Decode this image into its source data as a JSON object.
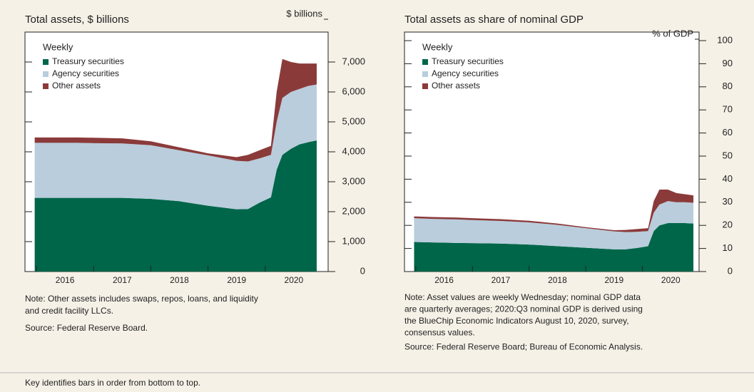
{
  "chart_data": [
    {
      "type": "stacked_area",
      "title": "Total assets, $ billions",
      "y_axis_label": "$ billions",
      "legend_title": "Weekly",
      "xlim": [
        2015.8,
        2021.1
      ],
      "xticks": [
        {
          "value": 2016,
          "label": "2016"
        },
        {
          "value": 2017,
          "label": "2017"
        },
        {
          "value": 2018,
          "label": "2018"
        },
        {
          "value": 2019,
          "label": "2019"
        },
        {
          "value": 2020,
          "label": "2020"
        }
      ],
      "ylim": [
        0,
        8000
      ],
      "yticks": [
        0,
        {
          "value": 1000,
          "label": "1,000"
        },
        {
          "value": 2000,
          "label": "2,000"
        },
        {
          "value": 3000,
          "label": "3,000"
        },
        {
          "value": 4000,
          "label": "4,000"
        },
        {
          "value": 5000,
          "label": "5,000"
        },
        {
          "value": 6000,
          "label": "6,000"
        },
        {
          "value": 7000,
          "label": "7,000"
        }
      ],
      "x": [
        2015.97,
        2016.3,
        2016.7,
        2017,
        2017.5,
        2018,
        2018.5,
        2019,
        2019.5,
        2019.7,
        2019.9,
        2020.1,
        2020.2,
        2020.3,
        2020.45,
        2020.6,
        2020.75,
        2020.9
      ],
      "series": [
        {
          "name": "Treasury securities",
          "color": "#00664a",
          "values": [
            2460,
            2460,
            2460,
            2460,
            2460,
            2430,
            2350,
            2200,
            2080,
            2090,
            2300,
            2480,
            3400,
            3900,
            4100,
            4250,
            4320,
            4380
          ]
        },
        {
          "name": "Agency securities",
          "color": "#b9cddc",
          "values": [
            1840,
            1840,
            1840,
            1830,
            1820,
            1790,
            1700,
            1680,
            1620,
            1590,
            1480,
            1420,
            1600,
            1900,
            1900,
            1850,
            1880,
            1870
          ]
        },
        {
          "name": "Other assets",
          "color": "#8b3a3a",
          "values": [
            180,
            180,
            180,
            180,
            170,
            130,
            100,
            70,
            120,
            220,
            270,
            300,
            1000,
            1300,
            1000,
            850,
            750,
            700
          ]
        }
      ],
      "note": [
        "Note: Other assets includes swaps, repos, loans, and liquidity",
        "and credit facility LLCs."
      ],
      "source": "Source: Federal Reserve Board."
    },
    {
      "type": "stacked_area",
      "title": "Total assets as share of nominal GDP",
      "y_axis_label": "% of GDP",
      "legend_title": "Weekly",
      "xlim": [
        2015.8,
        2021.0
      ],
      "xticks": [
        {
          "value": 2016,
          "label": "2016"
        },
        {
          "value": 2017,
          "label": "2017"
        },
        {
          "value": 2018,
          "label": "2018"
        },
        {
          "value": 2019,
          "label": "2019"
        },
        {
          "value": 2020,
          "label": "2020"
        }
      ],
      "ylim": [
        0,
        100
      ],
      "yticks": [
        0,
        10,
        20,
        30,
        40,
        50,
        60,
        70,
        80,
        90,
        100
      ],
      "x": [
        2015.97,
        2016.3,
        2016.7,
        2017,
        2017.5,
        2018,
        2018.5,
        2019,
        2019.5,
        2019.7,
        2019.9,
        2020.1,
        2020.2,
        2020.3,
        2020.45,
        2020.6,
        2020.75,
        2020.9
      ],
      "series": [
        {
          "name": "Treasury securities",
          "color": "#00664a",
          "values": [
            12.8,
            12.6,
            12.4,
            12.3,
            12.1,
            11.7,
            11.0,
            10.3,
            9.6,
            9.6,
            10.2,
            11.0,
            17.5,
            20.0,
            21.0,
            21.0,
            21.0,
            20.8
          ]
        },
        {
          "name": "Agency securities",
          "color": "#b9cddc",
          "values": [
            10.3,
            10.2,
            10.2,
            10.0,
            9.8,
            9.6,
            9.2,
            8.5,
            7.8,
            7.5,
            7.0,
            6.5,
            8.0,
            9.0,
            9.5,
            9.0,
            9.0,
            9.0
          ]
        },
        {
          "name": "Other assets",
          "color": "#8b3a3a",
          "values": [
            0.8,
            0.8,
            0.8,
            0.8,
            0.8,
            0.7,
            0.6,
            0.4,
            0.5,
            0.9,
            1.2,
            1.3,
            5.0,
            6.5,
            5.0,
            4.0,
            3.5,
            3.2
          ]
        }
      ],
      "note": [
        "Note: Asset values are weekly Wednesday; nominal GDP data",
        "are quarterly averages; 2020:Q3 nominal GDP is derived using",
        "the BlueChip Economic Indicators August 10, 2020, survey,",
        "consensus values."
      ],
      "source": "Source: Federal Reserve Board; Bureau of Economic Analysis."
    }
  ],
  "footer": "Key identifies bars in order from bottom to top."
}
